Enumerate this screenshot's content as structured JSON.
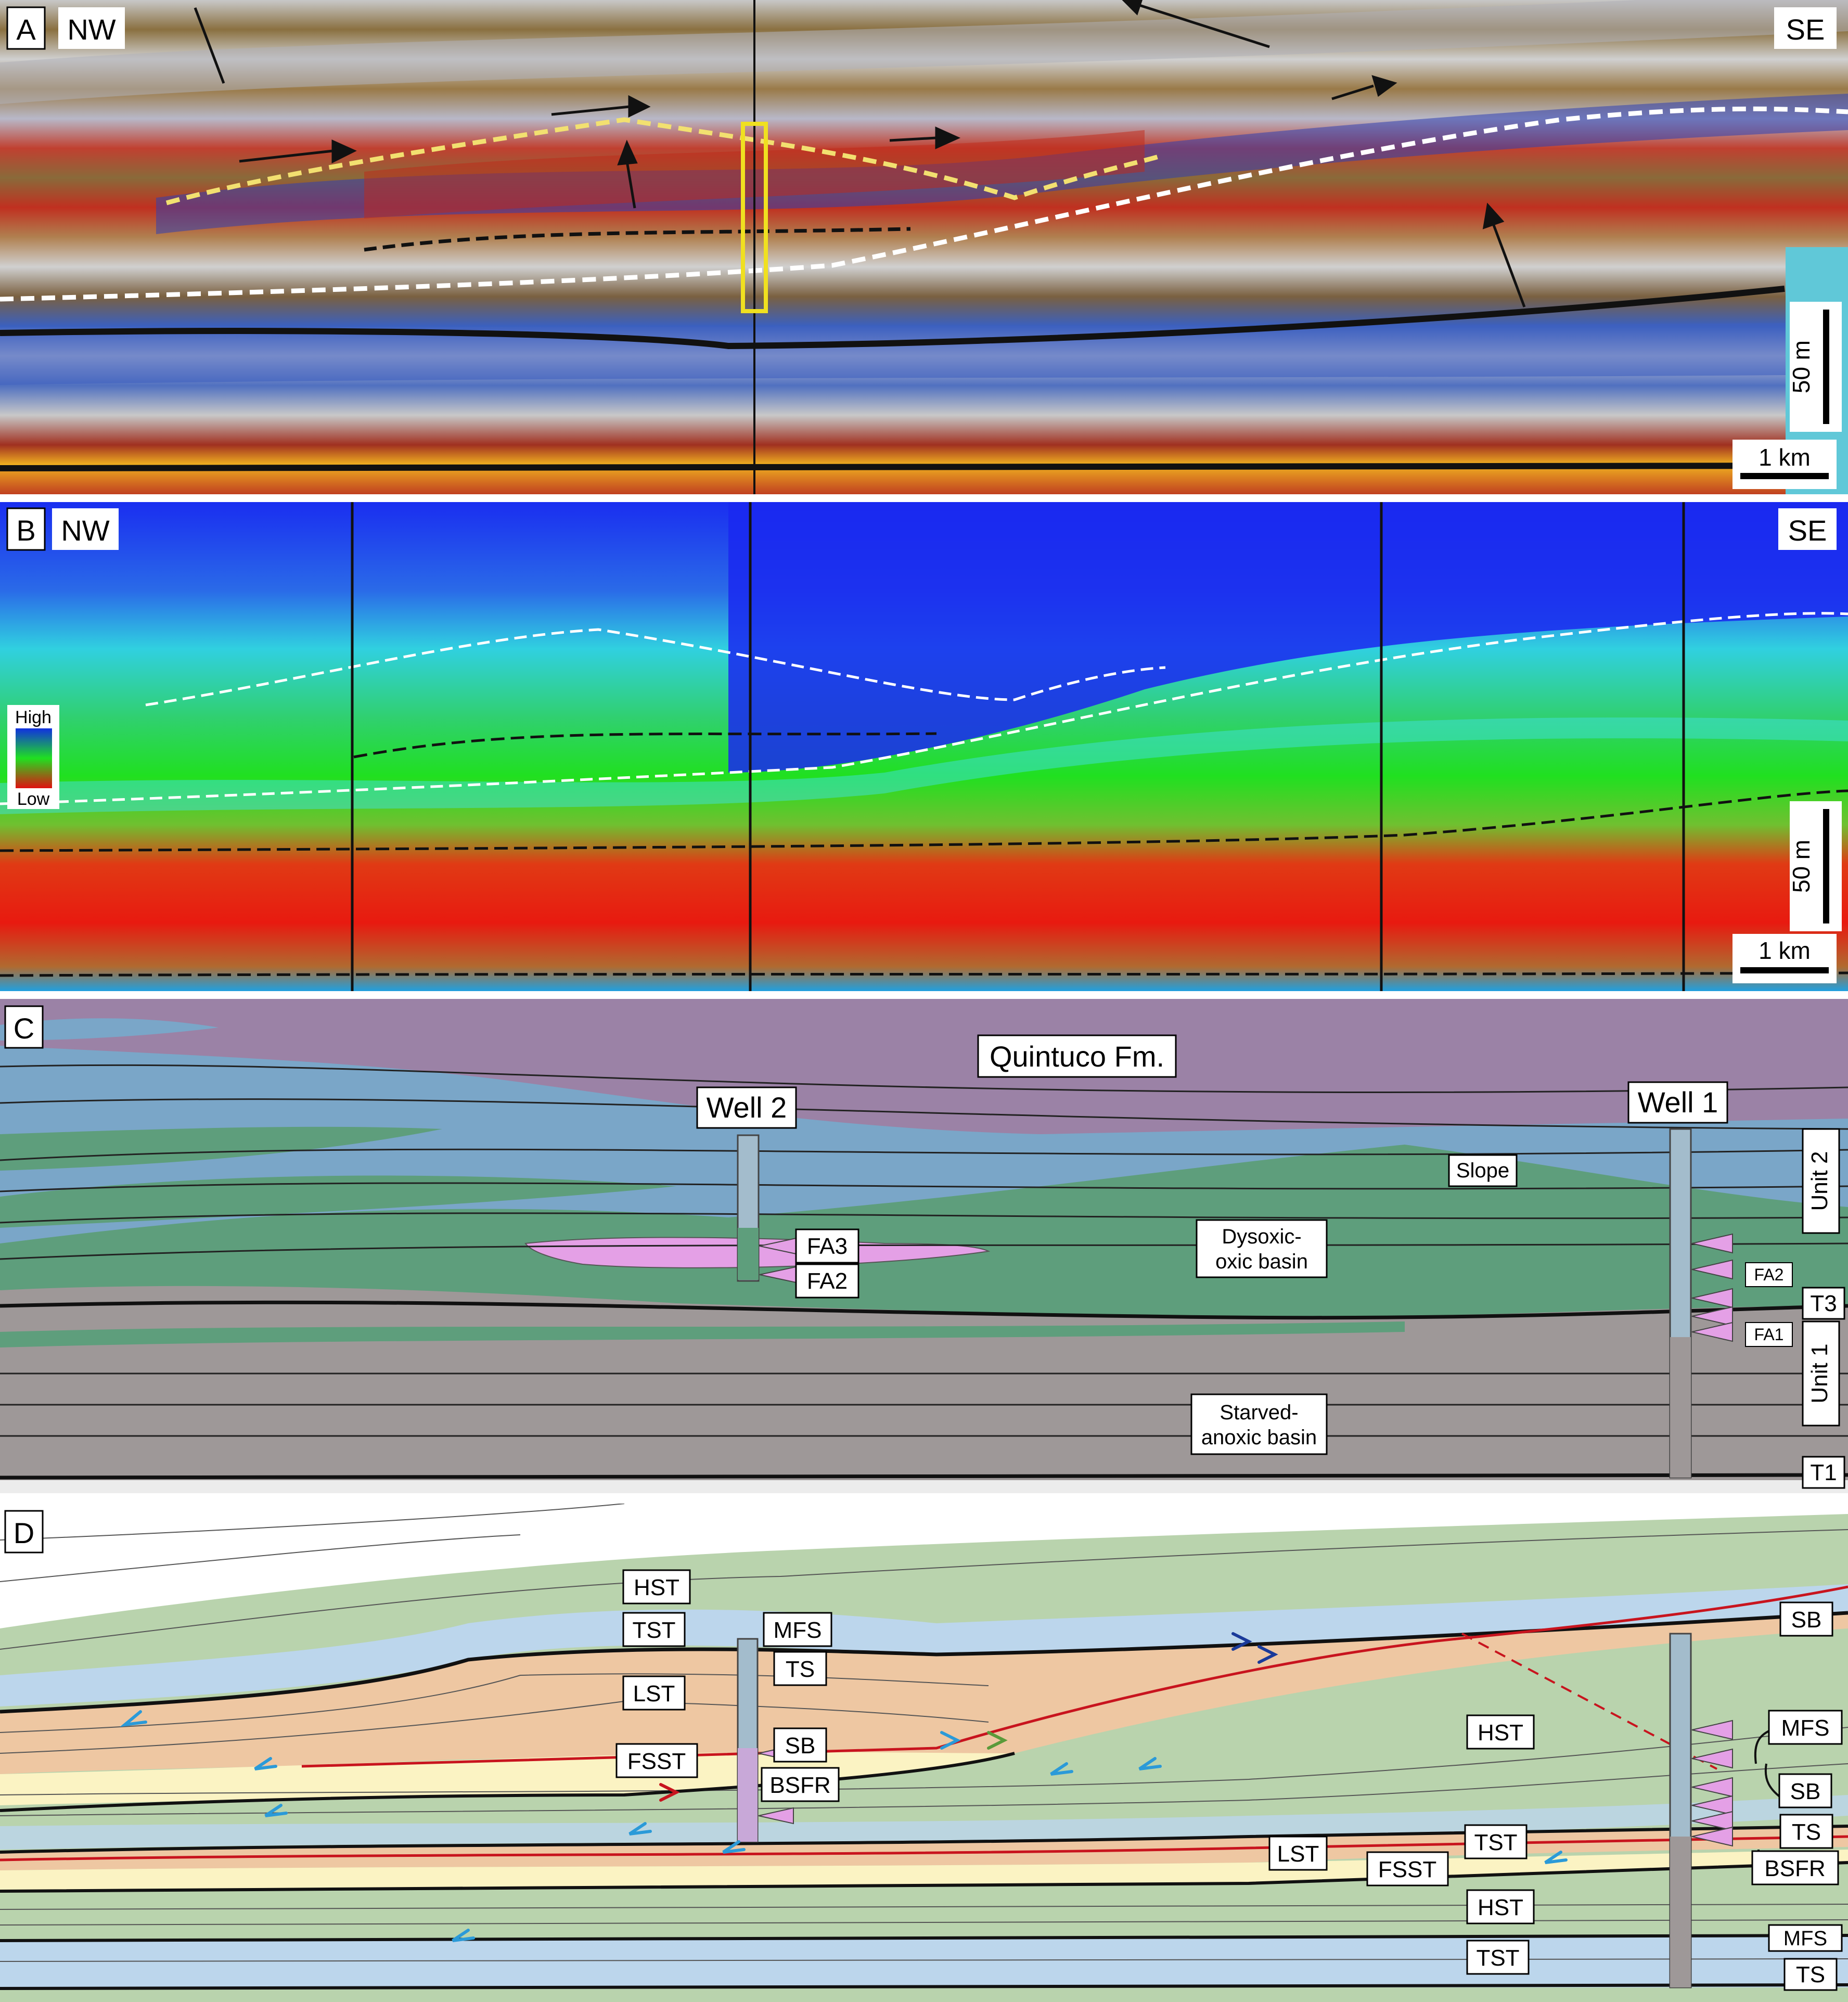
{
  "panel_a": {
    "letter": "A",
    "left_dir": "NW",
    "right_dir": "SE",
    "vscale": "50 m",
    "hscale": "1 km"
  },
  "panel_b": {
    "letter": "B",
    "left_dir": "NW",
    "right_dir": "SE",
    "legend_high": "High",
    "legend_low": "Low",
    "vscale": "50 m",
    "hscale": "1 km",
    "colors": {
      "high": "#1030e0",
      "mid": "#20e020",
      "low": "#e01010"
    }
  },
  "panel_c": {
    "letter": "C",
    "formation": "Quintuco Fm.",
    "well2": "Well 2",
    "well1": "Well 1",
    "slope": "Slope",
    "dysoxic": "Dysoxic-\noxic basin",
    "starved": "Starved-\nanoxic basin",
    "fa3": "FA3",
    "fa2": "FA2",
    "fa2_right": "FA2",
    "fa1": "FA1",
    "unit2": "Unit 2",
    "unit1": "Unit 1",
    "t3": "T3",
    "t1": "T1",
    "colors": {
      "purple": "#9b82a6",
      "blue": "#7aa6c8",
      "green": "#5e9e7c",
      "gray": "#9e9898",
      "pink": "#e4a0e6"
    }
  },
  "panel_d": {
    "letter": "D",
    "hst_top": "HST",
    "tst_top": "TST",
    "mfs_left": "MFS",
    "ts_left": "TS",
    "lst_top": "LST",
    "sb_left": "SB",
    "fsst_left": "FSST",
    "bsfr_left": "BSFR",
    "hst_mid": "HST",
    "tst_mid": "TST",
    "lst_mid": "LST",
    "fsst_mid": "FSST",
    "hst_low": "HST",
    "tst_low": "TST",
    "sb_right": "SB",
    "mfs_right": "MFS",
    "ts_right": "TS",
    "sb_right2": "SB",
    "bsfr_right": "BSFR",
    "mfs_bottom": "MFS",
    "ts_bottom": "TS",
    "colors": {
      "green": "#b9d3ad",
      "blue": "#bcd6ec",
      "orange": "#eec7a2",
      "yellow": "#fbf3c3",
      "red": "#c8141e"
    }
  }
}
